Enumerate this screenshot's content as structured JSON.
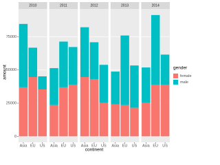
{
  "chart_data": {
    "type": "bar",
    "stacked": true,
    "facets": [
      "2010",
      "2011",
      "2012",
      "2013",
      "2014"
    ],
    "categories": [
      "Asia",
      "EU",
      "US"
    ],
    "x_label": "continent",
    "y_label": "amount",
    "legend_title": "gender",
    "series": [
      {
        "name": "female",
        "color": "#F8766D",
        "values": [
          [
            37000,
            44700,
            35400
          ],
          [
            23600,
            37000,
            39000
          ],
          [
            44700,
            43100,
            25200
          ],
          [
            24100,
            23600,
            21600
          ],
          [
            25200,
            39000,
            39000
          ]
        ]
      },
      {
        "name": "male",
        "color": "#00BFC4",
        "values": [
          [
            47700,
            22100,
            9800
          ],
          [
            27800,
            34400,
            28300
          ],
          [
            37500,
            27800,
            28700
          ],
          [
            24700,
            52400,
            31800
          ],
          [
            26700,
            52400,
            22600
          ]
        ]
      }
    ],
    "ylim": [
      -4500,
      96000
    ],
    "yticks": [
      0,
      25000,
      50000,
      75000
    ],
    "grid": true
  }
}
